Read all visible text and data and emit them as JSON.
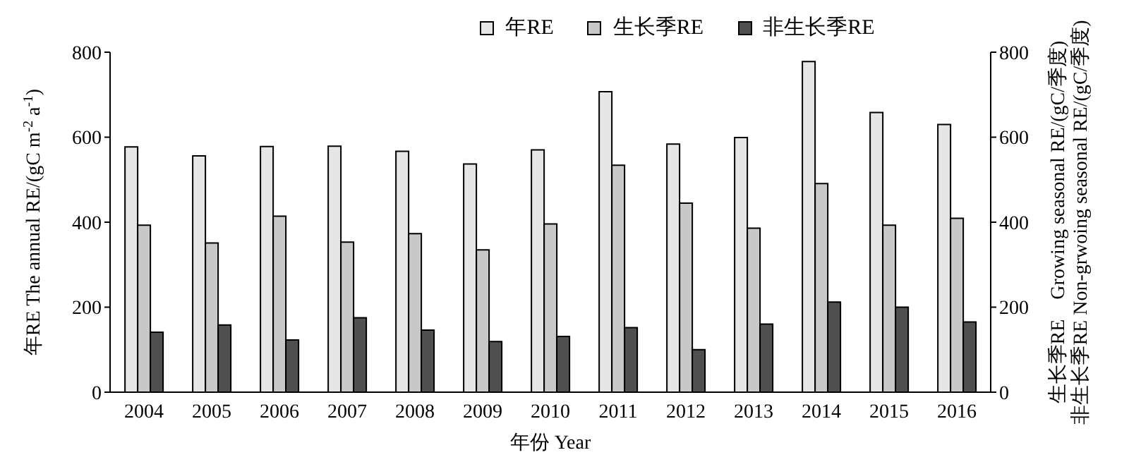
{
  "chart_data": {
    "type": "bar",
    "xlabel": "年份 Year",
    "ylabel": "年RE The annual RE/(gC m$^{-2}$ a$^{-1}$)",
    "y2label": "生长季RE　Growing seasonal RE/(gC/季度)\n非生长季RE Non-grwoing seasonal RE/(gC/季度)",
    "categories": [
      "2004",
      "2005",
      "2006",
      "2007",
      "2008",
      "2009",
      "2010",
      "2011",
      "2012",
      "2013",
      "2014",
      "2015",
      "2016"
    ],
    "series": [
      {
        "name": "年RE",
        "color": "#e6e6e6",
        "values": [
          577,
          556,
          578,
          579,
          567,
          537,
          570,
          707,
          584,
          599,
          778,
          658,
          630
        ]
      },
      {
        "name": "生长季RE",
        "color": "#c8c8c8",
        "axis": "y2",
        "values": [
          393,
          351,
          414,
          353,
          373,
          335,
          396,
          534,
          445,
          386,
          491,
          393,
          409
        ]
      },
      {
        "name": "非生长季RE",
        "color": "#505050",
        "axis": "y2",
        "values": [
          141,
          158,
          123,
          175,
          146,
          119,
          131,
          152,
          100,
          160,
          212,
          200,
          165
        ]
      }
    ],
    "ylim": [
      0,
      800
    ],
    "yticks": [
      0,
      200,
      400,
      600,
      800
    ],
    "y2lim": [
      0,
      800
    ],
    "y2ticks": [
      0,
      200,
      400,
      600,
      800
    ],
    "legend": "top",
    "grid": false
  }
}
